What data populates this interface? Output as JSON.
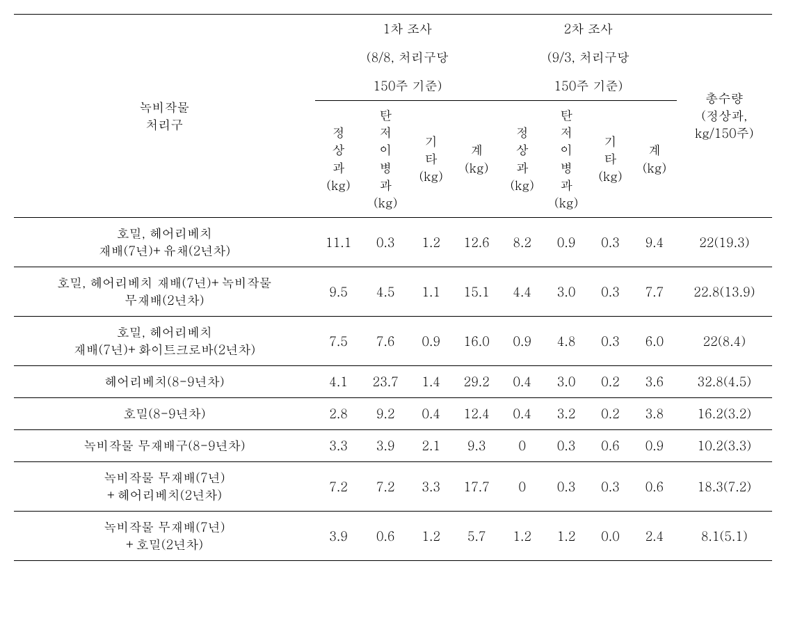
{
  "colors": {
    "background": "#ffffff",
    "text": "#000000",
    "border": "#000000"
  },
  "headers": {
    "row_label": "녹비작물\n처리구",
    "survey1_title": "1차 조사",
    "survey1_sub": "(8/8, 처리구당",
    "survey1_sub2": "150주 기준)",
    "survey2_title": "2차 조사",
    "survey2_sub": "(9/3, 처리구당",
    "survey2_sub2": "150주 기준)",
    "total_yield_l1": "총수량",
    "total_yield_l2": "(정상과,",
    "total_yield_l3": "kg/150주)",
    "col_normal_l1": "정",
    "col_normal_l2": "상",
    "col_normal_l3": "과",
    "col_normal_l4": "(kg)",
    "col_disease_l1": "탄",
    "col_disease_l2": "저",
    "col_disease_l3": "이",
    "col_disease_l4": "병",
    "col_disease_l5": "과",
    "col_disease_l6": "(kg)",
    "col_other_l1": "기",
    "col_other_l2": "타",
    "col_other_l3": "(kg)",
    "col_sum_l1": "계",
    "col_sum_l2": "(kg)"
  },
  "rows": [
    {
      "label_l1": "호밀, 헤어리베치",
      "label_l2": "재배(7년)+유채(2년차)",
      "s1_normal": "11.1",
      "s1_disease": "0.3",
      "s1_other": "1.2",
      "s1_sum": "12.6",
      "s2_normal": "8.2",
      "s2_disease": "0.9",
      "s2_other": "0.3",
      "s2_sum": "9.4",
      "total": "22(19.3)"
    },
    {
      "label_l1": "호밀, 헤어리베치 재배(7년)+녹비작물",
      "label_l2": "무재배(2년차)",
      "s1_normal": "9.5",
      "s1_disease": "4.5",
      "s1_other": "1.1",
      "s1_sum": "15.1",
      "s2_normal": "4.4",
      "s2_disease": "3.0",
      "s2_other": "0.3",
      "s2_sum": "7.7",
      "total": "22.8(13.9)"
    },
    {
      "label_l1": "호밀, 헤어리베치",
      "label_l2": "재배(7년)+화이트크로바(2년차)",
      "s1_normal": "7.5",
      "s1_disease": "7.6",
      "s1_other": "0.9",
      "s1_sum": "16.0",
      "s2_normal": "0.9",
      "s2_disease": "4.8",
      "s2_other": "0.3",
      "s2_sum": "6.0",
      "total": "22(8.4)"
    },
    {
      "label_l1": "헤어리베치(8-9년차)",
      "label_l2": "",
      "s1_normal": "4.1",
      "s1_disease": "23.7",
      "s1_other": "1.4",
      "s1_sum": "29.2",
      "s2_normal": "0.4",
      "s2_disease": "3.0",
      "s2_other": "0.2",
      "s2_sum": "3.6",
      "total": "32.8(4.5)"
    },
    {
      "label_l1": "호밀(8-9년차)",
      "label_l2": "",
      "s1_normal": "2.8",
      "s1_disease": "9.2",
      "s1_other": "0.4",
      "s1_sum": "12.4",
      "s2_normal": "0.4",
      "s2_disease": "3.2",
      "s2_other": "0.2",
      "s2_sum": "3.8",
      "total": "16.2(3.2)"
    },
    {
      "label_l1": "녹비작물 무재배구(8-9년차)",
      "label_l2": "",
      "s1_normal": "3.3",
      "s1_disease": "3.9",
      "s1_other": "2.1",
      "s1_sum": "9.3",
      "s2_normal": "0",
      "s2_disease": "0.3",
      "s2_other": "0.6",
      "s2_sum": "0.9",
      "total": "10.2(3.3)"
    },
    {
      "label_l1": "녹비작물 무재배(7년)",
      "label_l2": "+헤어리베치(2년차)",
      "s1_normal": "7.2",
      "s1_disease": "7.2",
      "s1_other": "3.3",
      "s1_sum": "17.7",
      "s2_normal": "0",
      "s2_disease": "0.3",
      "s2_other": "0.3",
      "s2_sum": "0.6",
      "total": "18.3(7.2)"
    },
    {
      "label_l1": "녹비작물 무재배(7년)",
      "label_l2": "+호밀(2년차)",
      "s1_normal": "3.9",
      "s1_disease": "0.6",
      "s1_other": "1.2",
      "s1_sum": "5.7",
      "s2_normal": "1.2",
      "s2_disease": "1.2",
      "s2_other": "0.0",
      "s2_sum": "2.4",
      "total": "8.1(5.1)"
    }
  ]
}
